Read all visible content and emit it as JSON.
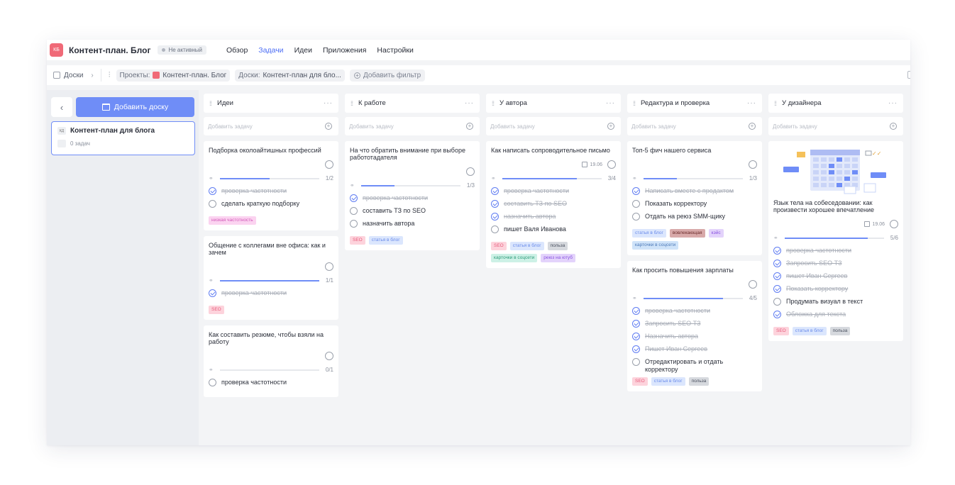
{
  "header": {
    "logo": "КБ",
    "title": "Контент-план. Блог",
    "status": "Не активный",
    "nav": [
      {
        "label": "Обзор",
        "active": false
      },
      {
        "label": "Задачи",
        "active": true
      },
      {
        "label": "Идеи",
        "active": false
      },
      {
        "label": "Приложения",
        "active": false
      },
      {
        "label": "Настройки",
        "active": false
      }
    ]
  },
  "filterbar": {
    "boards_label": "Доски",
    "projects_label": "Проекты:",
    "projects_value": "Контент-план. Блог",
    "boards_filter_label": "Доски:",
    "boards_filter_value": "Контент-план для бло...",
    "add_filter": "Добавить фильтр"
  },
  "sidebar": {
    "add_board": "Добавить доску",
    "board": {
      "badge": "КД",
      "title": "Контент-план для блога",
      "count": "0 задач"
    }
  },
  "add_task_placeholder": "Добавить задачу",
  "colors": {
    "accent": "#4d6ef5",
    "button": "#6f8df7",
    "done_check": "#5f7cf2"
  },
  "columns": [
    {
      "title": "Идеи",
      "cards": [
        {
          "title": "Подборка околоайтишных профессий",
          "date": "",
          "progress": {
            "done": 1,
            "total": 2,
            "label": "1/2"
          },
          "checklist": [
            {
              "text": "проверка частотности",
              "done": true
            },
            {
              "text": "сделать краткую подборку",
              "done": false
            }
          ],
          "tags": [
            {
              "label": "низкая частотность",
              "bg": "#fbd3f0",
              "fg": "#d259b9"
            }
          ]
        },
        {
          "title": "Общение с коллегами вне офиса: как и зачем",
          "date": "",
          "progress": {
            "done": 1,
            "total": 1,
            "label": "1/1"
          },
          "checklist": [
            {
              "text": "проверка частотности",
              "done": true
            }
          ],
          "tags": [
            {
              "label": "SEO",
              "bg": "#fdd3dc",
              "fg": "#e75b7b"
            }
          ]
        },
        {
          "title": "Как составить резюме, чтобы взяли на работу",
          "date": "",
          "progress": {
            "done": 0,
            "total": 1,
            "label": "0/1"
          },
          "checklist": [
            {
              "text": "проверка частотности",
              "done": false
            }
          ],
          "tags": []
        }
      ]
    },
    {
      "title": "К работе",
      "cards": [
        {
          "title": "На что обратить внимание при выборе работотадателя",
          "date": "",
          "progress": {
            "done": 1,
            "total": 3,
            "label": "1/3"
          },
          "checklist": [
            {
              "text": "проверка частотности",
              "done": true
            },
            {
              "text": "составить ТЗ по SEO",
              "done": false
            },
            {
              "text": "назначить автора",
              "done": false
            }
          ],
          "tags": [
            {
              "label": "SEO",
              "bg": "#fdd3dc",
              "fg": "#e75b7b"
            },
            {
              "label": "статья в блог",
              "bg": "#dbe6fd",
              "fg": "#6a8bea"
            }
          ]
        }
      ]
    },
    {
      "title": "У автора",
      "cards": [
        {
          "title": "Как написать сопроводительное письмо",
          "date": "19.06",
          "progress": {
            "done": 3,
            "total": 4,
            "label": "3/4"
          },
          "checklist": [
            {
              "text": "проверка частотности",
              "done": true
            },
            {
              "text": "составить ТЗ по SEO",
              "done": true
            },
            {
              "text": "назначить автора",
              "done": true
            },
            {
              "text": "пишет Валя Иванова",
              "done": false
            }
          ],
          "tags": [
            {
              "label": "SEO",
              "bg": "#fdd3dc",
              "fg": "#e75b7b"
            },
            {
              "label": "статья в блог",
              "bg": "#dbe6fd",
              "fg": "#6a8bea"
            },
            {
              "label": "польза",
              "bg": "#d6d9de",
              "fg": "#4b5160"
            },
            {
              "label": "карточки в соцсети",
              "bg": "#cdf1e6",
              "fg": "#2e9b7a"
            },
            {
              "label": "реюз на ютуб",
              "bg": "#e3d3fb",
              "fg": "#8a54e0"
            }
          ]
        }
      ]
    },
    {
      "title": "Редактура и проверка",
      "cards": [
        {
          "title": "Топ-5 фич нашего сервиса",
          "date": "",
          "progress": {
            "done": 1,
            "total": 3,
            "label": "1/3"
          },
          "checklist": [
            {
              "text": "Написать вместе с продактом",
              "done": true
            },
            {
              "text": "Показать корректору",
              "done": false
            },
            {
              "text": "Отдать на реюз SMM-щику",
              "done": false
            }
          ],
          "tags": [
            {
              "label": "статья в блог",
              "bg": "#dbe6fd",
              "fg": "#6a8bea"
            },
            {
              "label": "вовлекающая",
              "bg": "#d8a9a9",
              "fg": "#6e2f2f"
            },
            {
              "label": "кэйс",
              "bg": "#e3d3fb",
              "fg": "#8a54e0"
            },
            {
              "label": "карточки в соцсети",
              "bg": "#cfe3f9",
              "fg": "#4c79b8"
            }
          ]
        },
        {
          "title": "Как просить повышения зарплаты",
          "date": "",
          "progress": {
            "done": 4,
            "total": 5,
            "label": "4/5"
          },
          "checklist": [
            {
              "text": "проверка частотности",
              "done": true
            },
            {
              "text": "Запросить SEO ТЗ",
              "done": true
            },
            {
              "text": "Назначить автора",
              "done": true
            },
            {
              "text": "Пишет Иван Сергеев",
              "done": true
            },
            {
              "text": "Отредактировать и отдать корректору",
              "done": false
            }
          ],
          "tags": [
            {
              "label": "SEO",
              "bg": "#fdd3dc",
              "fg": "#e75b7b"
            },
            {
              "label": "статья в блог",
              "bg": "#dbe6fd",
              "fg": "#6a8bea"
            },
            {
              "label": "польза",
              "bg": "#d6d9de",
              "fg": "#4b5160"
            }
          ]
        }
      ]
    },
    {
      "title": "У дизайнера",
      "cards": [
        {
          "title": "Язык тела на собеседовании: как произвести хорошее впечатление",
          "illustration": true,
          "date": "19.06",
          "progress": {
            "done": 5,
            "total": 6,
            "label": "5/6"
          },
          "checklist": [
            {
              "text": "проверка частотности",
              "done": true
            },
            {
              "text": "Запросить SEO ТЗ",
              "done": true
            },
            {
              "text": "пишет Иван Сергеев",
              "done": true
            },
            {
              "text": "Показать корректору",
              "done": true
            },
            {
              "text": "Продумать визуал в текст",
              "done": false
            },
            {
              "text": "Обложка для текста",
              "done": true
            }
          ],
          "tags": [
            {
              "label": "SEO",
              "bg": "#fdd3dc",
              "fg": "#e75b7b"
            },
            {
              "label": "статья в блог",
              "bg": "#dbe6fd",
              "fg": "#6a8bea"
            },
            {
              "label": "польза",
              "bg": "#d6d9de",
              "fg": "#4b5160"
            }
          ]
        }
      ]
    }
  ]
}
